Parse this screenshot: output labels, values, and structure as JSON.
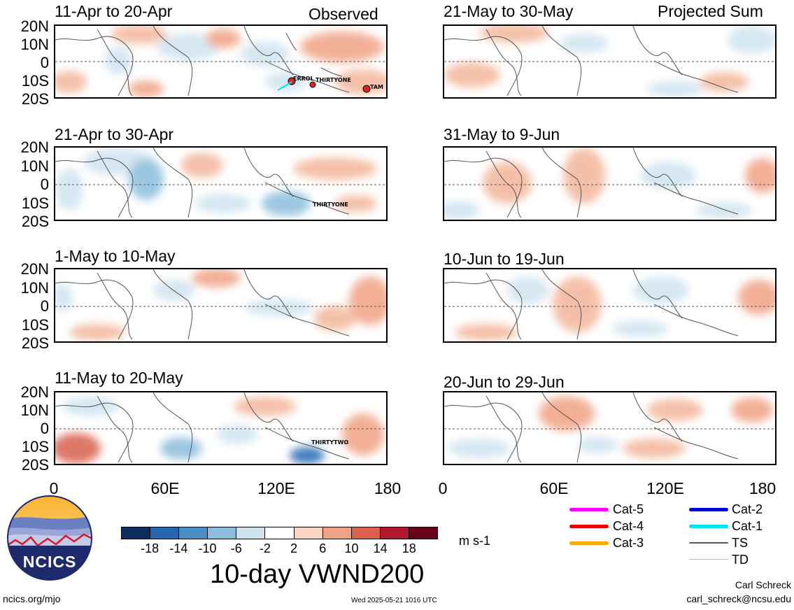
{
  "header": {
    "observed_label": "Observed",
    "projected_label": "Projected Sum"
  },
  "axis": {
    "lat_labels": [
      "20N",
      "10N",
      "0",
      "10S",
      "20S"
    ],
    "lon_labels": [
      "0",
      "60E",
      "120E",
      "180"
    ]
  },
  "panels_left": [
    {
      "title": "11-Apr to 20-Apr"
    },
    {
      "title": "21-Apr to 30-Apr"
    },
    {
      "title": "1-May to 10-May"
    },
    {
      "title": "11-May to 20-May"
    }
  ],
  "panels_right": [
    {
      "title": "21-May to 30-May"
    },
    {
      "title": "31-May to 9-Jun"
    },
    {
      "title": "10-Jun to 19-Jun"
    },
    {
      "title": "20-Jun to 29-Jun"
    }
  ],
  "storms": {
    "p1": [
      "ERROL",
      "THIRTYONE",
      "TAM"
    ],
    "p2": [
      "THIRTYONE"
    ],
    "p4": [
      "THIRTYTWO"
    ]
  },
  "colorbar": {
    "labels": [
      "-18",
      "-14",
      "-10",
      "-6",
      "-2",
      "2",
      "6",
      "10",
      "14",
      "18"
    ],
    "colors": [
      "#0b2d5e",
      "#2467b0",
      "#4a90c8",
      "#8bbddc",
      "#cfe3ef",
      "#ffffff",
      "#fbd6c2",
      "#f0a284",
      "#d8604d",
      "#b0192b",
      "#6b0018"
    ],
    "units": "m s-1",
    "title": "10-day VWND200"
  },
  "legend": {
    "items": [
      {
        "label": "Cat-5",
        "color": "#ff00ff"
      },
      {
        "label": "Cat-4",
        "color": "#ee0000"
      },
      {
        "label": "Cat-3",
        "color": "#ffa500"
      },
      {
        "label": "Cat-2",
        "color": "#0000cc"
      },
      {
        "label": "Cat-1",
        "color": "#00e5ee"
      },
      {
        "label": "TS",
        "color": "#555555"
      },
      {
        "label": "TD",
        "color": "#bbbbbb"
      }
    ]
  },
  "footer": {
    "logo_text": "NCICS",
    "url": "ncics.org/mjo",
    "timestamp": "Wed 2025-05-21 1016 UTC",
    "author": "Carl Schreck",
    "email": "carl_schreck@ncsu.edu"
  }
}
